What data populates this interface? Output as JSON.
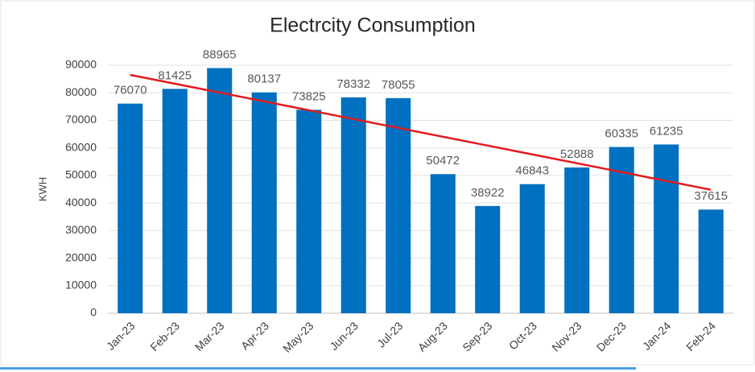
{
  "chart_data": {
    "type": "bar",
    "title": "Electrcity Consumption",
    "y_label": "KWH",
    "categories": [
      "Jan-23",
      "Feb-23",
      "Mar-23",
      "Apr-23",
      "May-23",
      "Jun-23",
      "Jul-23",
      "Aug-23",
      "Sep-23",
      "Oct-23",
      "Nov-23",
      "Dec-23",
      "Jan-24",
      "Feb-24"
    ],
    "values": [
      76070,
      81425,
      88965,
      80137,
      73825,
      78332,
      78055,
      50472,
      38922,
      46843,
      52888,
      60335,
      61235,
      37615
    ],
    "color": "#0070c0",
    "trendline": {
      "color": "#e31a1c",
      "values": [
        86500,
        44800
      ]
    },
    "ylim": [
      0,
      90000
    ],
    "yticks": [
      0,
      10000,
      20000,
      30000,
      40000,
      50000,
      60000,
      70000,
      80000,
      90000
    ],
    "grid": true
  }
}
